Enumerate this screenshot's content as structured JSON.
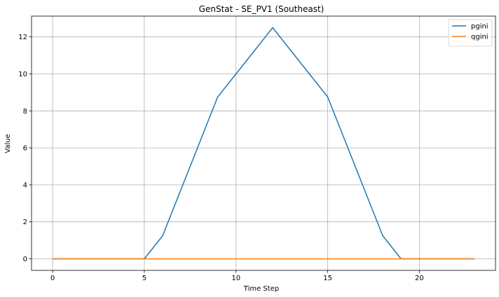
{
  "chart_data": {
    "type": "line",
    "title": "GenStat - SE_PV1 (Southeast)",
    "xlabel": "Time Step",
    "ylabel": "Value",
    "x": [
      0,
      1,
      2,
      3,
      4,
      5,
      6,
      7,
      8,
      9,
      10,
      11,
      12,
      13,
      14,
      15,
      16,
      17,
      18,
      19,
      20,
      21,
      22,
      23
    ],
    "xlim": [
      -1.15,
      24.15
    ],
    "ylim": [
      -0.625,
      13.125
    ],
    "xticks": [
      0,
      5,
      10,
      15,
      20
    ],
    "yticks": [
      0,
      2,
      4,
      6,
      8,
      10,
      12
    ],
    "grid": true,
    "legend_position": "top-right",
    "series": [
      {
        "name": "pgini",
        "color": "#1f77b4",
        "values": [
          0,
          0,
          0,
          0,
          0,
          0,
          1.25,
          3.75,
          6.25,
          8.75,
          10,
          11.25,
          12.5,
          11.25,
          10,
          8.75,
          6.25,
          3.75,
          1.25,
          0,
          0,
          0,
          0,
          0
        ]
      },
      {
        "name": "qgini",
        "color": "#ff7f0e",
        "values": [
          0,
          0,
          0,
          0,
          0,
          0,
          0,
          0,
          0,
          0,
          0,
          0,
          0,
          0,
          0,
          0,
          0,
          0,
          0,
          0,
          0,
          0,
          0,
          0
        ]
      }
    ]
  }
}
